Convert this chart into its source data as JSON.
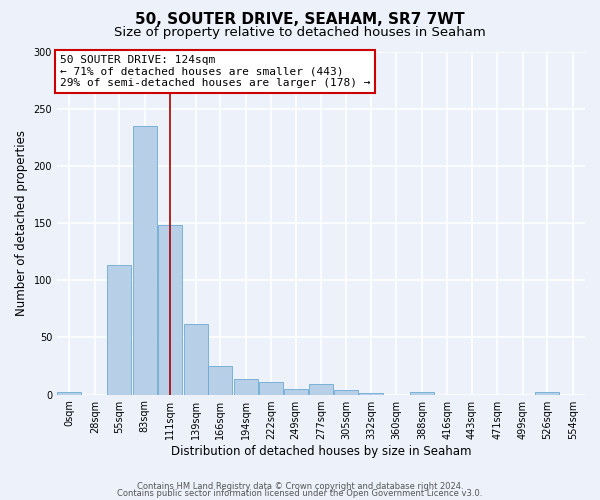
{
  "title": "50, SOUTER DRIVE, SEAHAM, SR7 7WT",
  "subtitle": "Size of property relative to detached houses in Seaham",
  "xlabel": "Distribution of detached houses by size in Seaham",
  "ylabel": "Number of detached properties",
  "bin_labels": [
    "0sqm",
    "28sqm",
    "55sqm",
    "83sqm",
    "111sqm",
    "139sqm",
    "166sqm",
    "194sqm",
    "222sqm",
    "249sqm",
    "277sqm",
    "305sqm",
    "332sqm",
    "360sqm",
    "388sqm",
    "416sqm",
    "443sqm",
    "471sqm",
    "499sqm",
    "526sqm",
    "554sqm"
  ],
  "bin_edges": [
    0,
    28,
    55,
    83,
    111,
    139,
    166,
    194,
    222,
    249,
    277,
    305,
    332,
    360,
    388,
    416,
    443,
    471,
    499,
    526,
    554
  ],
  "bin_width": 27,
  "bar_heights": [
    2,
    0,
    113,
    235,
    148,
    62,
    25,
    14,
    11,
    5,
    9,
    4,
    1,
    0,
    2,
    0,
    0,
    0,
    0,
    2,
    0
  ],
  "bar_color": "#b8cfe8",
  "bar_edgecolor": "#6aaad4",
  "property_line_x": 124,
  "property_line_color": "#aa0000",
  "annotation_text": "50 SOUTER DRIVE: 124sqm\n← 71% of detached houses are smaller (443)\n29% of semi-detached houses are larger (178) →",
  "annotation_box_color": "#ffffff",
  "annotation_box_edgecolor": "#cc0000",
  "ylim": [
    0,
    300
  ],
  "yticks": [
    0,
    50,
    100,
    150,
    200,
    250,
    300
  ],
  "xlim_min": 0,
  "xlim_max": 581,
  "footer_line1": "Contains HM Land Registry data © Crown copyright and database right 2024.",
  "footer_line2": "Contains public sector information licensed under the Open Government Licence v3.0.",
  "bg_color": "#edf1f9",
  "grid_color": "#ffffff",
  "title_fontsize": 11,
  "subtitle_fontsize": 9.5,
  "axis_label_fontsize": 8.5,
  "tick_fontsize": 7,
  "annotation_fontsize": 8,
  "footer_fontsize": 6
}
